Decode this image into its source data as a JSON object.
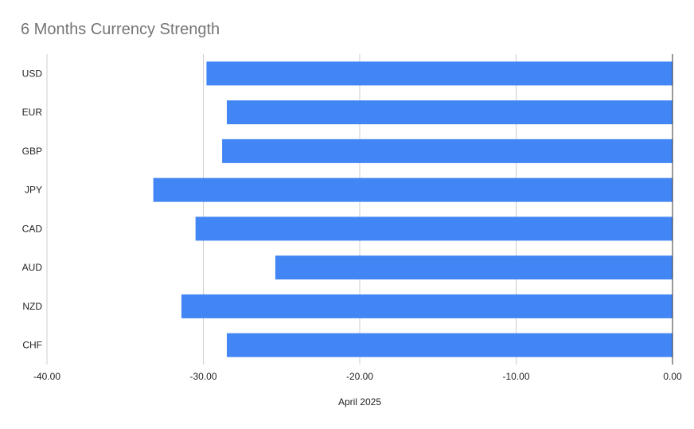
{
  "chart_data": {
    "type": "bar",
    "orientation": "horizontal",
    "title": "6 Months Currency Strength",
    "xlabel": "April 2025",
    "ylabel": "",
    "categories": [
      "USD",
      "EUR",
      "GBP",
      "JPY",
      "CAD",
      "AUD",
      "NZD",
      "CHF"
    ],
    "values": [
      -29.8,
      -28.5,
      -28.8,
      -33.2,
      -30.5,
      -25.4,
      -31.4,
      -28.5
    ],
    "xlim": [
      -40,
      0
    ],
    "xticks": [
      -40,
      -30,
      -20,
      -10,
      0
    ],
    "xtick_labels": [
      "-40.00",
      "-30.00",
      "-20.00",
      "-10.00",
      "0.00"
    ],
    "grid": true,
    "legend": "none",
    "bar_color": "#4285f4"
  }
}
